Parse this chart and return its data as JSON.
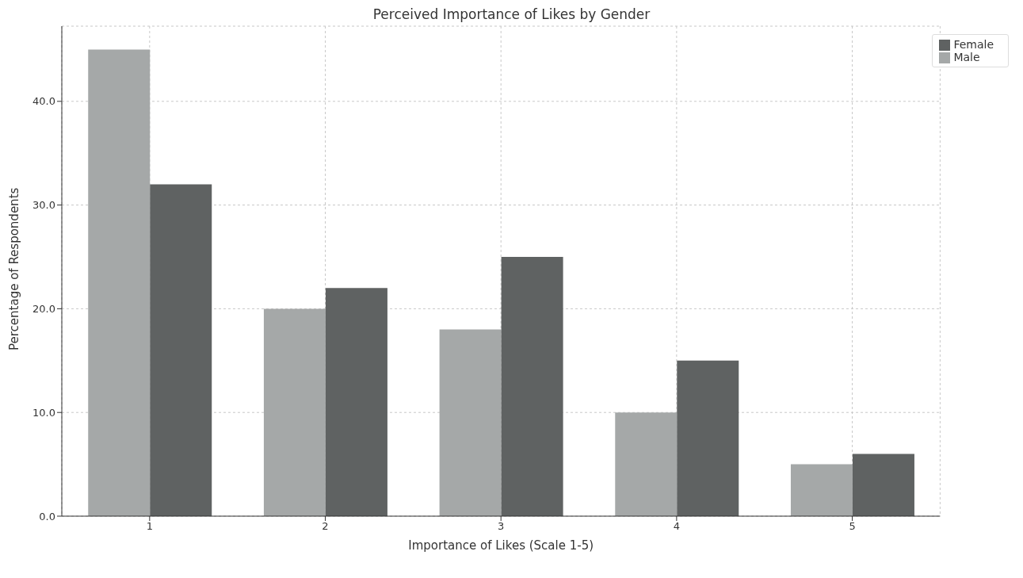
{
  "chart_data": {
    "type": "bar",
    "title": "Perceived Importance of Likes by Gender",
    "xlabel": "Importance of Likes (Scale 1-5)",
    "ylabel": "Percentage of Respondents",
    "categories": [
      "1",
      "2",
      "3",
      "4",
      "5"
    ],
    "series": [
      {
        "name": "Male",
        "color": "#a5a8a8",
        "values": [
          45,
          20,
          18,
          10,
          5
        ]
      },
      {
        "name": "Female",
        "color": "#5f6262",
        "values": [
          32,
          22,
          25,
          15,
          6
        ]
      }
    ],
    "ylim": [
      0,
      47.25
    ],
    "yticks": [
      {
        "value": 0,
        "label": "0.0"
      },
      {
        "value": 10,
        "label": "10.0"
      },
      {
        "value": 20,
        "label": "20.0"
      },
      {
        "value": 30,
        "label": "30.0"
      },
      {
        "value": 40,
        "label": "40.0"
      }
    ],
    "grid": true,
    "legend": "top right"
  }
}
